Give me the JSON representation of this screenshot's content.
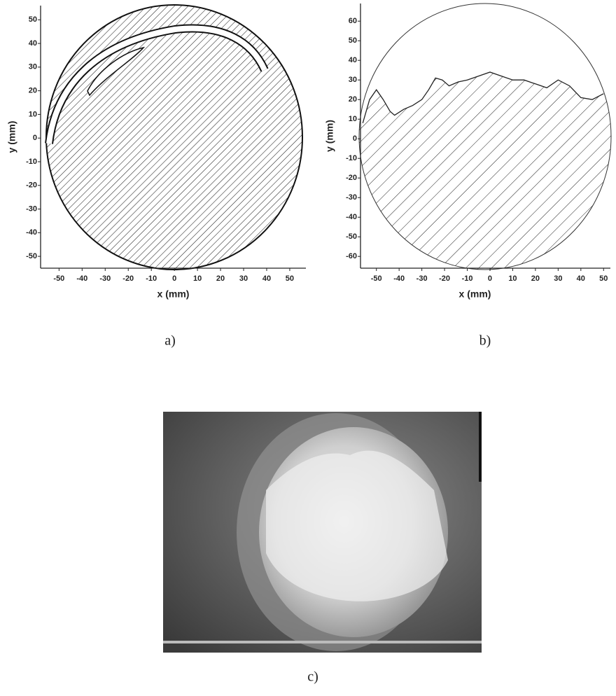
{
  "chart_data": [
    {
      "type": "region",
      "caption": "a)",
      "x_label": "x (mm)",
      "y_label": "y (mm)",
      "xlim": [
        -58,
        57
      ],
      "ylim": [
        -55,
        56
      ],
      "xticks": [
        -50,
        -40,
        -30,
        -20,
        -10,
        0,
        10,
        20,
        30,
        40,
        50
      ],
      "yticks": [
        -50,
        -40,
        -30,
        -20,
        -10,
        0,
        10,
        20,
        30,
        40,
        50
      ]
    },
    {
      "type": "surface",
      "caption": "b)",
      "x_label": "x (mm)",
      "y_label": "y (mm)",
      "xlim": [
        -57,
        53
      ],
      "ylim": [
        -66,
        69
      ],
      "xticks": [
        -50,
        -40,
        -30,
        -20,
        -10,
        0,
        10,
        20,
        30,
        40,
        50
      ],
      "yticks": [
        -60,
        -50,
        -40,
        -30,
        -20,
        -10,
        0,
        10,
        20,
        30,
        40,
        50,
        60
      ],
      "x": [
        -56,
        -53,
        -50,
        -47,
        -44,
        -42,
        -38,
        -34,
        -30,
        -27,
        -24,
        -21,
        -18,
        -14,
        -10,
        -5,
        0,
        5,
        10,
        15,
        20,
        25,
        30,
        35,
        40,
        45,
        50
      ],
      "values": [
        8,
        20,
        25,
        20,
        14,
        12,
        15,
        17,
        20,
        25,
        31,
        30,
        27,
        29,
        30,
        32,
        34,
        32,
        30,
        30,
        28,
        26,
        30,
        27,
        21,
        20,
        23
      ]
    }
  ],
  "photo": {
    "caption": "c)"
  }
}
